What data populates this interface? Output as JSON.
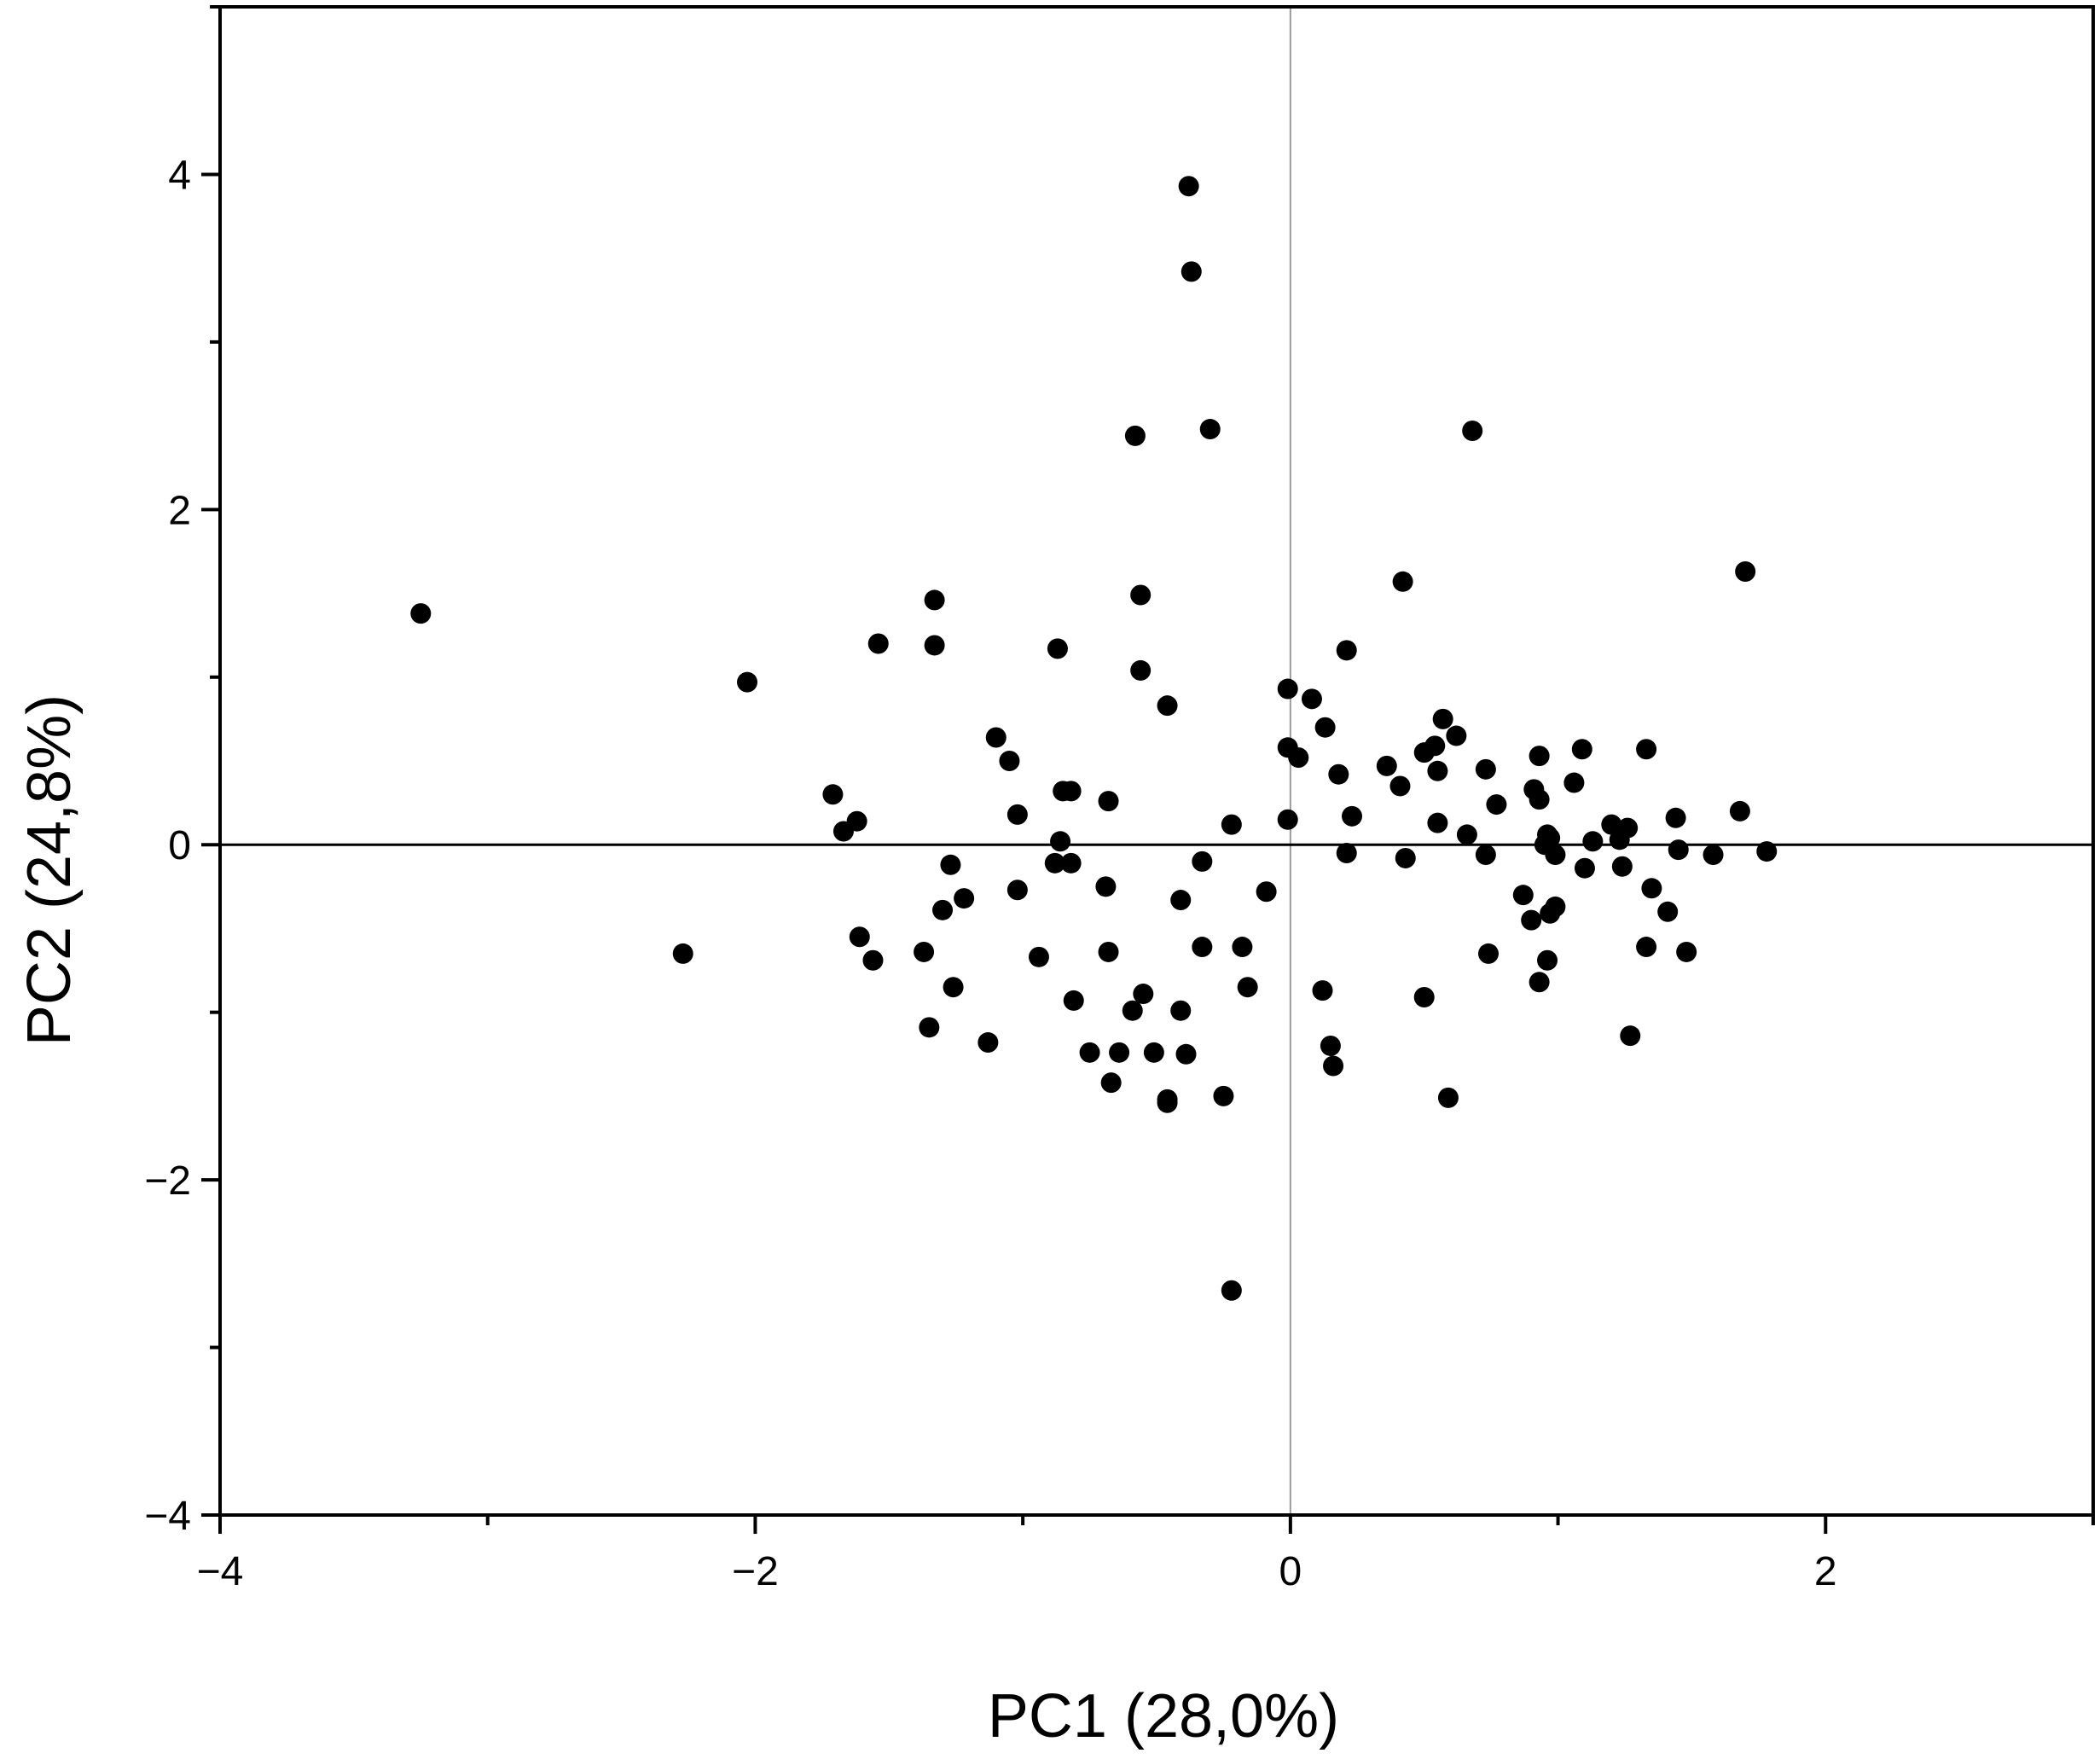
{
  "chart_data": {
    "type": "scatter",
    "title": "",
    "xlabel": "PC1 (28,0%)",
    "ylabel": "PC2 (24,8%)",
    "xlim": [
      -4,
      3
    ],
    "ylim": [
      -4,
      5
    ],
    "x_ticks": [
      {
        "value": -4,
        "label": "−4"
      },
      {
        "value": -2,
        "label": "−2"
      },
      {
        "value": 0,
        "label": "0"
      },
      {
        "value": 2,
        "label": "2"
      }
    ],
    "x_minor_ticks": [
      -3,
      -1,
      1,
      3
    ],
    "y_ticks": [
      {
        "value": -4,
        "label": "−4"
      },
      {
        "value": -2,
        "label": "−2"
      },
      {
        "value": 0,
        "label": "0"
      },
      {
        "value": 2,
        "label": "2"
      },
      {
        "value": 4,
        "label": "4"
      }
    ],
    "y_minor_ticks": [
      -3,
      -1,
      1,
      3,
      5
    ],
    "reference_lines": {
      "x": 0,
      "y": 0
    },
    "grid": false,
    "legend": "none",
    "marker_color": "#000000",
    "series": [
      {
        "points": [
          [
            -3.25,
            1.38
          ],
          [
            -2.27,
            -0.65
          ],
          [
            -2.03,
            0.97
          ],
          [
            -1.71,
            0.3
          ],
          [
            -1.67,
            0.08
          ],
          [
            -1.62,
            0.14
          ],
          [
            -1.61,
            -0.55
          ],
          [
            -1.56,
            -0.69
          ],
          [
            -1.54,
            1.2
          ],
          [
            -1.37,
            -0.64
          ],
          [
            -1.35,
            -1.09
          ],
          [
            -1.33,
            1.46
          ],
          [
            -1.33,
            1.19
          ],
          [
            -1.3,
            -0.39
          ],
          [
            -1.27,
            -0.12
          ],
          [
            -1.26,
            -0.85
          ],
          [
            -1.22,
            -0.32
          ],
          [
            -1.13,
            -1.18
          ],
          [
            -1.1,
            0.64
          ],
          [
            -1.05,
            0.5
          ],
          [
            -1.02,
            0.18
          ],
          [
            -1.02,
            -0.27
          ],
          [
            -0.94,
            -0.67
          ],
          [
            -0.88,
            -0.11
          ],
          [
            -0.87,
            1.17
          ],
          [
            -0.86,
            0.02
          ],
          [
            -0.85,
            0.32
          ],
          [
            -0.82,
            0.32
          ],
          [
            -0.82,
            -0.11
          ],
          [
            -0.81,
            -0.93
          ],
          [
            -0.75,
            -1.24
          ],
          [
            -0.69,
            -0.25
          ],
          [
            -0.68,
            0.26
          ],
          [
            -0.68,
            -0.64
          ],
          [
            -0.67,
            -1.42
          ],
          [
            -0.64,
            -1.24
          ],
          [
            -0.59,
            -0.99
          ],
          [
            -0.58,
            2.44
          ],
          [
            -0.56,
            1.04
          ],
          [
            -0.56,
            1.49
          ],
          [
            -0.55,
            -0.89
          ],
          [
            -0.51,
            -1.24
          ],
          [
            -0.46,
            0.83
          ],
          [
            -0.46,
            -1.52
          ],
          [
            -0.46,
            -1.54
          ],
          [
            -0.41,
            -0.33
          ],
          [
            -0.41,
            -0.99
          ],
          [
            -0.39,
            -1.25
          ],
          [
            -0.38,
            3.93
          ],
          [
            -0.37,
            3.42
          ],
          [
            -0.33,
            -0.1
          ],
          [
            -0.33,
            -0.61
          ],
          [
            -0.3,
            2.48
          ],
          [
            -0.25,
            -1.5
          ],
          [
            -0.22,
            0.12
          ],
          [
            -0.22,
            -2.66
          ],
          [
            -0.18,
            -0.61
          ],
          [
            -0.16,
            -0.85
          ],
          [
            -0.09,
            -0.28
          ],
          [
            -0.01,
            0.93
          ],
          [
            -0.01,
            0.58
          ],
          [
            -0.01,
            0.15
          ],
          [
            0.03,
            0.52
          ],
          [
            0.08,
            0.87
          ],
          [
            0.12,
            -0.87
          ],
          [
            0.13,
            0.7
          ],
          [
            0.15,
            -1.2
          ],
          [
            0.16,
            -1.32
          ],
          [
            0.18,
            0.42
          ],
          [
            0.21,
            -0.05
          ],
          [
            0.21,
            1.16
          ],
          [
            0.23,
            0.17
          ],
          [
            0.36,
            0.47
          ],
          [
            0.41,
            0.35
          ],
          [
            0.42,
            1.57
          ],
          [
            0.43,
            -0.08
          ],
          [
            0.5,
            -0.91
          ],
          [
            0.5,
            0.55
          ],
          [
            0.54,
            0.59
          ],
          [
            0.55,
            0.44
          ],
          [
            0.55,
            0.13
          ],
          [
            0.57,
            0.75
          ],
          [
            0.59,
            -1.51
          ],
          [
            0.62,
            0.65
          ],
          [
            0.66,
            0.06
          ],
          [
            0.68,
            2.47
          ],
          [
            0.73,
            0.45
          ],
          [
            0.73,
            -0.06
          ],
          [
            0.74,
            -0.65
          ],
          [
            0.77,
            0.24
          ],
          [
            0.87,
            -0.3
          ],
          [
            0.9,
            -0.45
          ],
          [
            0.91,
            0.33
          ],
          [
            0.93,
            0.53
          ],
          [
            0.93,
            0.27
          ],
          [
            0.93,
            -0.82
          ],
          [
            0.95,
            0.0
          ],
          [
            0.96,
            0.06
          ],
          [
            0.96,
            -0.69
          ],
          [
            0.97,
            -0.41
          ],
          [
            0.97,
            0.04
          ],
          [
            0.99,
            -0.06
          ],
          [
            0.99,
            -0.37
          ],
          [
            1.06,
            0.37
          ],
          [
            1.09,
            0.57
          ],
          [
            1.1,
            -0.14
          ],
          [
            1.13,
            0.02
          ],
          [
            1.2,
            0.12
          ],
          [
            1.23,
            0.03
          ],
          [
            1.24,
            -0.13
          ],
          [
            1.26,
            0.1
          ],
          [
            1.27,
            -1.14
          ],
          [
            1.33,
            0.57
          ],
          [
            1.33,
            -0.61
          ],
          [
            1.35,
            -0.26
          ],
          [
            1.41,
            -0.4
          ],
          [
            1.44,
            0.16
          ],
          [
            1.45,
            -0.03
          ],
          [
            1.48,
            -0.64
          ],
          [
            1.58,
            -0.06
          ],
          [
            1.68,
            0.2
          ],
          [
            1.7,
            1.63
          ],
          [
            1.78,
            -0.04
          ]
        ]
      }
    ]
  }
}
